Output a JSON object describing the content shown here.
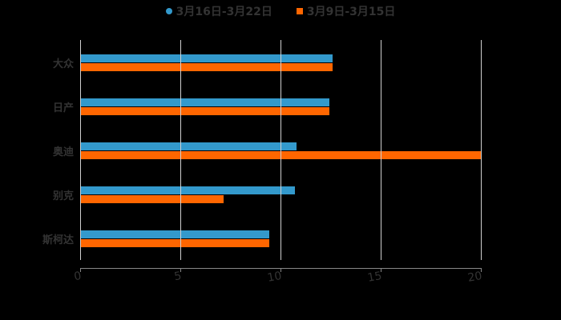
{
  "chart_data": {
    "type": "bar",
    "orientation": "horizontal",
    "title": "",
    "xlabel": "",
    "ylabel": "",
    "categories": [
      "大众",
      "日产",
      "奥迪",
      "别克",
      "斯柯达"
    ],
    "series": [
      {
        "name": "3月16日-3月22日",
        "color": "#3399CC",
        "marker": "circle",
        "values": [
          12.6,
          12.45,
          10.8,
          10.7,
          9.45
        ]
      },
      {
        "name": "3月9日-3月15日",
        "color": "#FF6600",
        "marker": "square",
        "values": [
          12.6,
          12.45,
          20.0,
          7.15,
          9.45
        ]
      }
    ],
    "xlim": [
      0,
      20
    ],
    "xticks": [
      "0",
      "5",
      "10",
      "15",
      "20"
    ],
    "grid": true,
    "legend_position": "top"
  },
  "legend": {
    "items": [
      {
        "label": "3月16日-3月22日",
        "color": "#3399CC"
      },
      {
        "label": "3月9日-3月15日",
        "color": "#FF6600"
      }
    ]
  },
  "axis": {
    "x_ticks": [
      "0",
      "5",
      "10",
      "15",
      "20"
    ],
    "y_categories": [
      "大众",
      "日产",
      "奥迪",
      "别克",
      "斯柯达"
    ]
  }
}
